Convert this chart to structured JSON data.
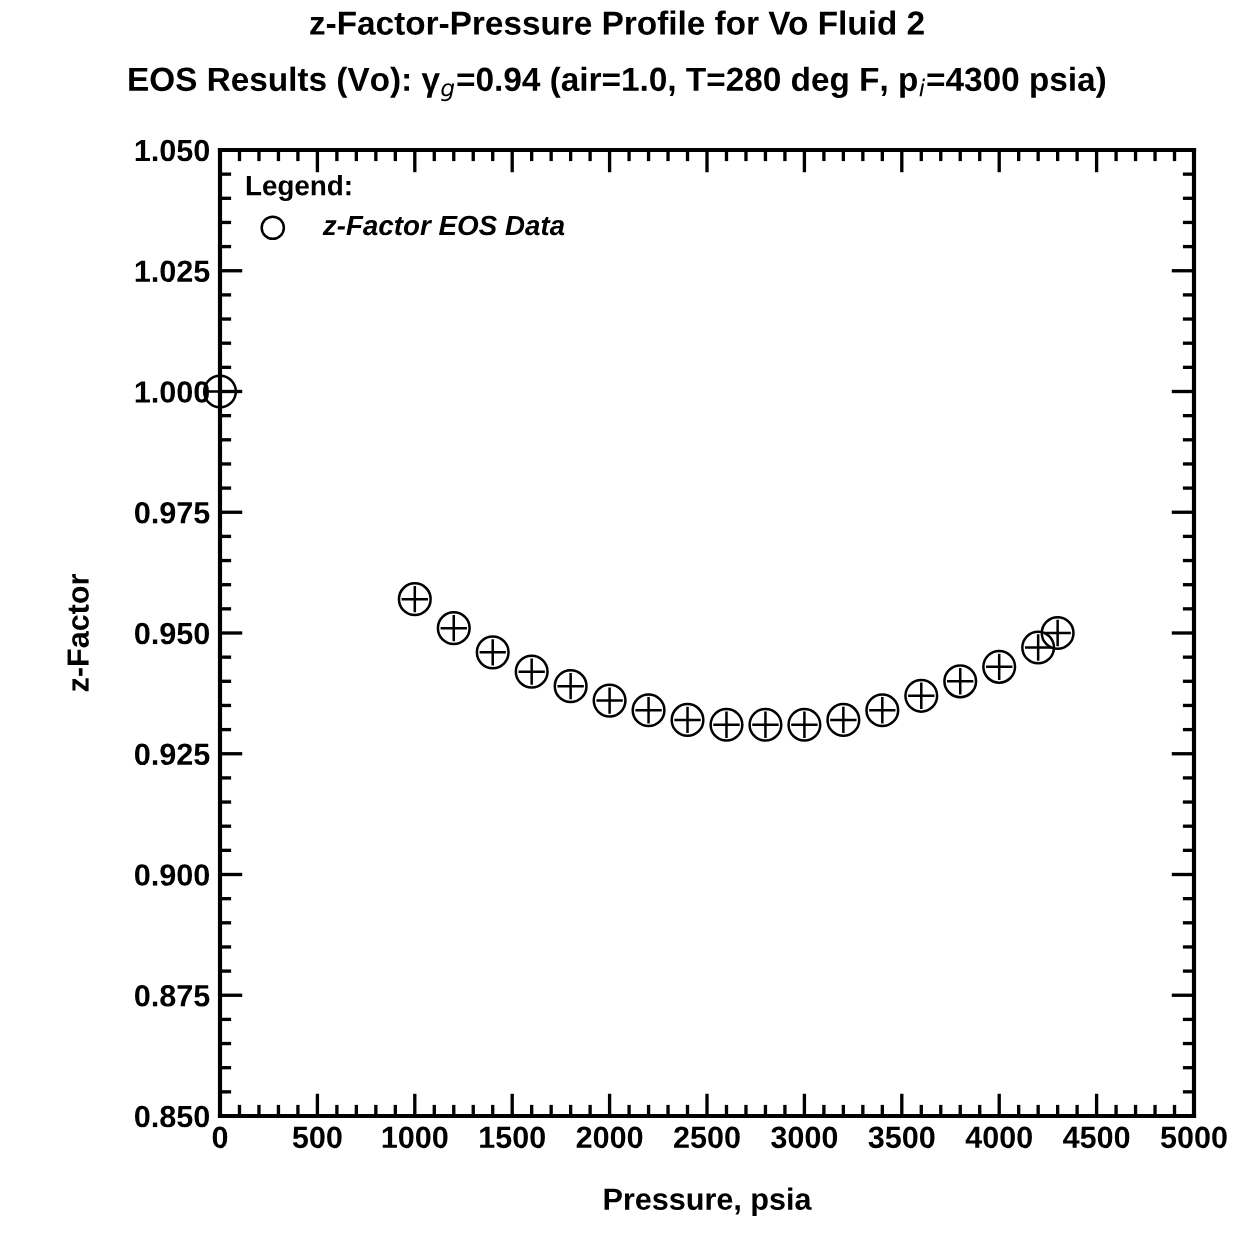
{
  "chart_data": {
    "type": "scatter",
    "title": "z-Factor-Pressure Profile for Vo Fluid 2",
    "subtitle": "EOS Results (Vo): γ$_{g}$=0.94 (air=1.0, T=280 deg F, p$_{i}$=4300 psia)",
    "xlabel": "Pressure, psia",
    "ylabel": "z-Factor",
    "legend_title": "Legend:",
    "series": [
      {
        "name": "z-Factor EOS Data",
        "color": "#000000",
        "x": [
          0,
          1000,
          1200,
          1400,
          1600,
          1800,
          2000,
          2200,
          2400,
          2600,
          2800,
          3000,
          3200,
          3400,
          3600,
          3800,
          4000,
          4200,
          4300
        ],
        "values": [
          1.0,
          0.957,
          0.951,
          0.946,
          0.942,
          0.939,
          0.936,
          0.934,
          0.932,
          0.931,
          0.931,
          0.931,
          0.932,
          0.934,
          0.937,
          0.94,
          0.943,
          0.947,
          0.95
        ]
      }
    ],
    "xlim": [
      0,
      5000
    ],
    "xticks": [
      0,
      500,
      1000,
      1500,
      2000,
      2500,
      3000,
      3500,
      4000,
      4500,
      5000
    ],
    "ylim": [
      0.85,
      1.05
    ],
    "yticks": [
      {
        "value": 0.85,
        "label": "0.850"
      },
      {
        "value": 0.875,
        "label": "0.875"
      },
      {
        "value": 0.9,
        "label": "0.900"
      },
      {
        "value": 0.925,
        "label": "0.925"
      },
      {
        "value": 0.95,
        "label": "0.950"
      },
      {
        "value": 0.975,
        "label": "0.975"
      },
      {
        "value": 1.0,
        "label": "1.000"
      },
      {
        "value": 1.025,
        "label": "1.025"
      },
      {
        "value": 1.05,
        "label": "1.050"
      }
    ],
    "marker": "circle",
    "legend": "top left",
    "grid": false
  }
}
